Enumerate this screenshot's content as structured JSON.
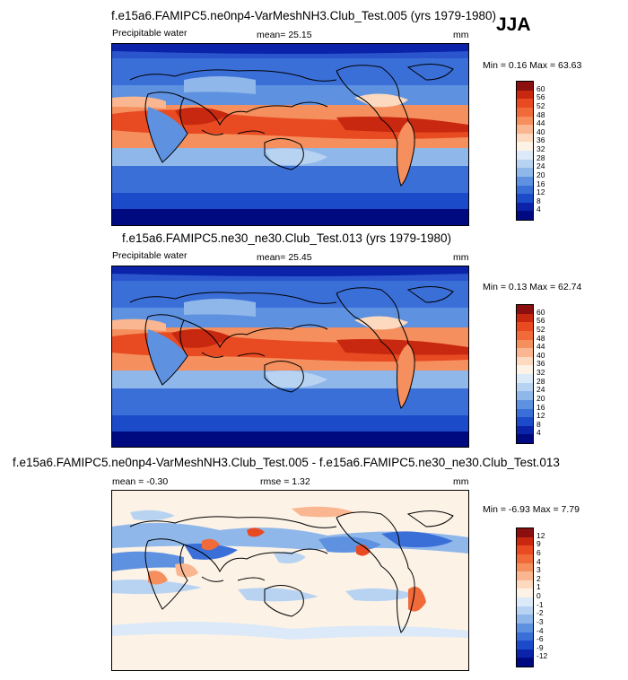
{
  "season": "JJA",
  "panels": [
    {
      "title": "f.e15a6.FAMIPC5.ne0np4-VarMeshNH3.Club_Test.005 (yrs 1979-1980)",
      "left_label": "Precipitable water",
      "center_label": "mean=  25.15",
      "units": "mm",
      "minmax": "Min =   0.16 Max =  63.63",
      "colorbar": {
        "labels": [
          "60",
          "56",
          "52",
          "48",
          "44",
          "40",
          "36",
          "32",
          "28",
          "24",
          "20",
          "16",
          "12",
          "8",
          "4"
        ],
        "colors": [
          "#8b0f0f",
          "#c8280f",
          "#e84a22",
          "#f06a3a",
          "#f58f5e",
          "#f9b690",
          "#fcd9bf",
          "#fdf2e6",
          "#dbe9f8",
          "#b8d3f2",
          "#8fb7ea",
          "#5e92e0",
          "#3b6fd8",
          "#1c4bc9",
          "#0a23a8",
          "#000a80"
        ]
      }
    },
    {
      "title": "f.e15a6.FAMIPC5.ne30_ne30.Club_Test.013 (yrs 1979-1980)",
      "left_label": "Precipitable water",
      "center_label": "mean=  25.45",
      "units": "mm",
      "minmax": "Min =   0.13 Max =  62.74",
      "colorbar": {
        "labels": [
          "60",
          "56",
          "52",
          "48",
          "44",
          "40",
          "36",
          "32",
          "28",
          "24",
          "20",
          "16",
          "12",
          "8",
          "4"
        ],
        "colors": [
          "#8b0f0f",
          "#c8280f",
          "#e84a22",
          "#f06a3a",
          "#f58f5e",
          "#f9b690",
          "#fcd9bf",
          "#fdf2e6",
          "#dbe9f8",
          "#b8d3f2",
          "#8fb7ea",
          "#5e92e0",
          "#3b6fd8",
          "#1c4bc9",
          "#0a23a8",
          "#000a80"
        ]
      }
    },
    {
      "title": "f.e15a6.FAMIPC5.ne0np4-VarMeshNH3.Club_Test.005 - f.e15a6.FAMIPC5.ne30_ne30.Club_Test.013",
      "left_label": "mean =  -0.30",
      "center_label": "rmse =   1.32",
      "units": "mm",
      "minmax": "Min =  -6.93 Max =   7.79",
      "colorbar": {
        "labels": [
          "12",
          "9",
          "6",
          "4",
          "3",
          "2",
          "1",
          "0",
          "-1",
          "-2",
          "-3",
          "-4",
          "-6",
          "-9",
          "-12"
        ],
        "colors": [
          "#8b0f0f",
          "#c8280f",
          "#e84a22",
          "#f06a3a",
          "#f58f5e",
          "#f9b690",
          "#fcd9bf",
          "#fdf2e6",
          "#dbe9f8",
          "#b8d3f2",
          "#8fb7ea",
          "#5e92e0",
          "#3b6fd8",
          "#1c4bc9",
          "#0a23a8",
          "#000a80"
        ]
      }
    }
  ]
}
